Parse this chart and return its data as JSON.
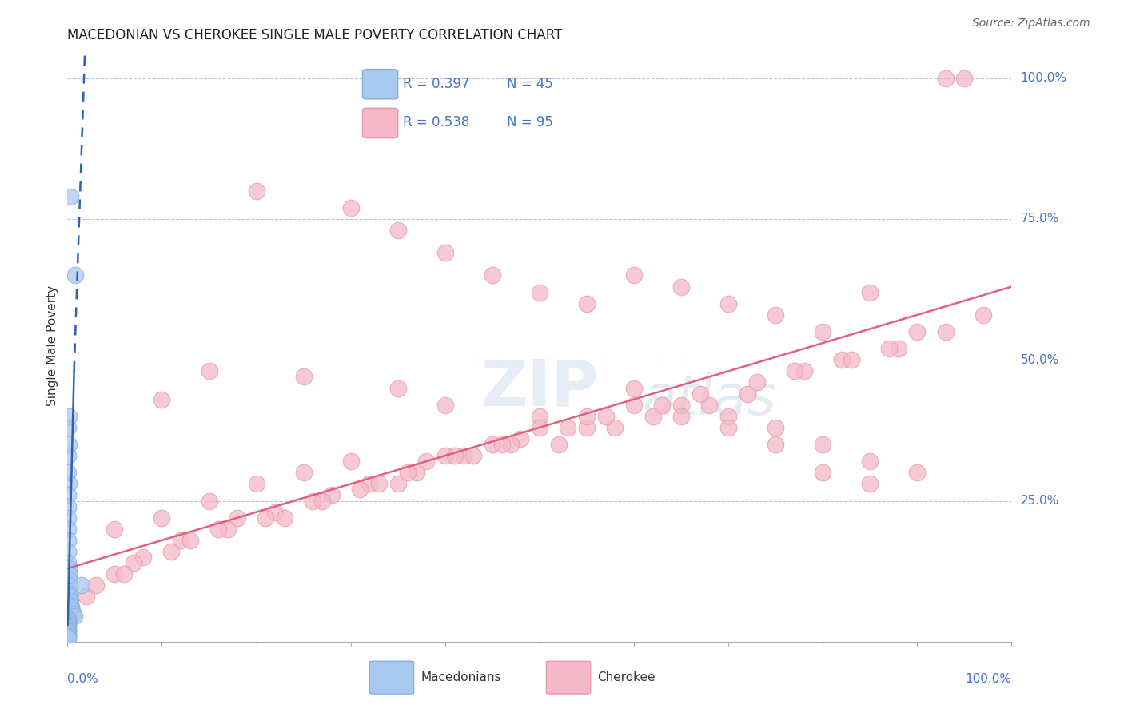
{
  "title": "MACEDONIAN VS CHEROKEE SINGLE MALE POVERTY CORRELATION CHART",
  "source": "Source: ZipAtlas.com",
  "ylabel": "Single Male Poverty",
  "legend_macedonian_R": "R = 0.397",
  "legend_macedonian_N": "N = 45",
  "legend_cherokee_R": "R = 0.538",
  "legend_cherokee_N": "N = 95",
  "macedonian_color": "#a8c8f0",
  "cherokee_color": "#f5b8c8",
  "macedonian_edge": "#85aee0",
  "cherokee_edge": "#e898b0",
  "trend_macedonian_color": "#3060b0",
  "trend_cherokee_color": "#e06080",
  "label_color": "#4472C4",
  "background_color": "#ffffff",
  "macedonian_x": [
    0.3,
    0.8,
    0.1,
    0.05,
    0.15,
    0.05,
    0.05,
    0.1,
    0.05,
    0.05,
    0.05,
    0.05,
    0.05,
    0.05,
    0.05,
    0.1,
    0.1,
    0.1,
    0.15,
    0.15,
    0.2,
    0.2,
    0.25,
    0.3,
    0.35,
    0.4,
    0.5,
    0.6,
    0.7,
    0.05,
    0.05,
    0.05,
    0.05,
    0.05,
    0.05,
    0.05,
    0.05,
    0.05,
    0.05,
    0.05,
    0.05,
    0.05,
    0.05,
    0.05,
    1.5
  ],
  "macedonian_y": [
    79.0,
    65.0,
    40.0,
    38.0,
    35.0,
    33.0,
    30.0,
    28.0,
    26.0,
    24.0,
    22.0,
    20.0,
    18.0,
    16.0,
    14.0,
    13.0,
    12.0,
    11.0,
    10.0,
    9.0,
    8.5,
    8.0,
    7.5,
    7.0,
    6.5,
    6.0,
    5.5,
    5.0,
    4.5,
    4.0,
    3.8,
    3.5,
    3.2,
    3.0,
    2.8,
    2.5,
    2.2,
    2.0,
    1.8,
    1.5,
    1.2,
    1.0,
    0.8,
    0.5,
    10.0
  ],
  "cherokee_x": [
    95.0,
    93.0,
    20.0,
    30.0,
    35.0,
    40.0,
    45.0,
    50.0,
    55.0,
    60.0,
    65.0,
    70.0,
    75.0,
    80.0,
    85.0,
    90.0,
    10.0,
    15.0,
    25.0,
    35.0,
    40.0,
    50.0,
    55.0,
    60.0,
    65.0,
    70.0,
    75.0,
    80.0,
    85.0,
    90.0,
    5.0,
    10.0,
    15.0,
    20.0,
    25.0,
    30.0,
    35.0,
    40.0,
    45.0,
    50.0,
    55.0,
    60.0,
    65.0,
    70.0,
    75.0,
    80.0,
    85.0,
    2.0,
    5.0,
    8.0,
    12.0,
    18.0,
    22.0,
    28.0,
    32.0,
    38.0,
    42.0,
    48.0,
    52.0,
    58.0,
    62.0,
    68.0,
    72.0,
    78.0,
    82.0,
    88.0,
    3.0,
    7.0,
    13.0,
    17.0,
    23.0,
    27.0,
    33.0,
    37.0,
    43.0,
    47.0,
    53.0,
    57.0,
    63.0,
    67.0,
    73.0,
    77.0,
    83.0,
    87.0,
    93.0,
    97.0,
    6.0,
    11.0,
    16.0,
    21.0,
    26.0,
    31.0,
    36.0,
    41.0,
    46.0
  ],
  "cherokee_y": [
    100.0,
    100.0,
    80.0,
    77.0,
    73.0,
    69.0,
    65.0,
    62.0,
    60.0,
    65.0,
    63.0,
    60.0,
    58.0,
    55.0,
    62.0,
    55.0,
    43.0,
    48.0,
    47.0,
    45.0,
    42.0,
    40.0,
    38.0,
    45.0,
    42.0,
    40.0,
    38.0,
    35.0,
    32.0,
    30.0,
    20.0,
    22.0,
    25.0,
    28.0,
    30.0,
    32.0,
    28.0,
    33.0,
    35.0,
    38.0,
    40.0,
    42.0,
    40.0,
    38.0,
    35.0,
    30.0,
    28.0,
    8.0,
    12.0,
    15.0,
    18.0,
    22.0,
    23.0,
    26.0,
    28.0,
    32.0,
    33.0,
    36.0,
    35.0,
    38.0,
    40.0,
    42.0,
    44.0,
    48.0,
    50.0,
    52.0,
    10.0,
    14.0,
    18.0,
    20.0,
    22.0,
    25.0,
    28.0,
    30.0,
    33.0,
    35.0,
    38.0,
    40.0,
    42.0,
    44.0,
    46.0,
    48.0,
    50.0,
    52.0,
    55.0,
    58.0,
    12.0,
    16.0,
    20.0,
    22.0,
    25.0,
    27.0,
    30.0,
    33.0,
    35.0
  ],
  "xlim": [
    0,
    100
  ],
  "ylim": [
    0,
    105
  ],
  "xticks": [
    0,
    10,
    20,
    30,
    40,
    50,
    60,
    70,
    80,
    90,
    100
  ],
  "ytick_positions": [
    25,
    50,
    75,
    100
  ],
  "ytick_labels": [
    "25.0%",
    "50.0%",
    "75.0%",
    "100.0%"
  ],
  "figsize": [
    14.06,
    8.92
  ],
  "dpi": 100
}
